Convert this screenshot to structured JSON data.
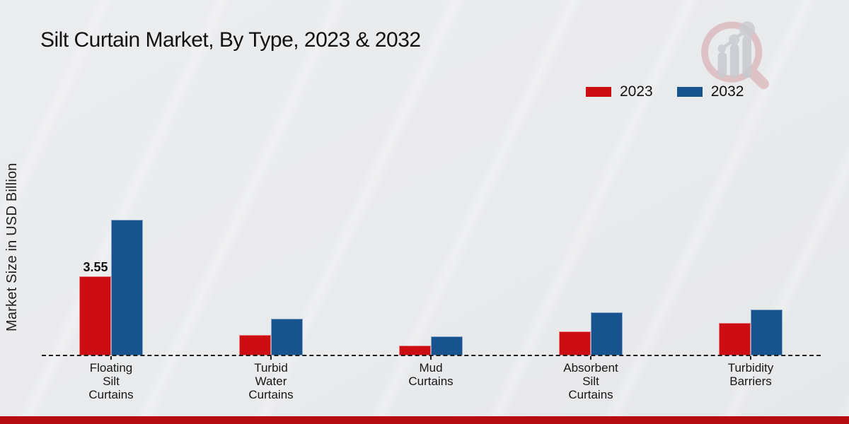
{
  "header": {
    "title": "Silt Curtain Market, By Type, 2023 & 2032"
  },
  "chart_data": {
    "type": "bar",
    "title": "Silt Curtain Market, By Type, 2023 & 2032",
    "categories": [
      "Floating Silt Curtains",
      "Turbid Water Curtains",
      "Mud Curtains",
      "Absorbent Silt Curtains",
      "Turbidity Barriers"
    ],
    "series": [
      {
        "name": "2023",
        "color": "#CC0D12",
        "values": [
          3.55,
          0.93,
          0.45,
          1.09,
          1.47
        ]
      },
      {
        "name": "2032",
        "color": "#17538F",
        "values": [
          6.08,
          1.66,
          0.84,
          1.92,
          2.05
        ]
      }
    ],
    "bar_labels": [
      {
        "series": "2023",
        "category": "Floating Silt Curtains",
        "text": "3.55"
      }
    ],
    "xlabel": "",
    "ylabel": "Market Size in USD Billion",
    "ylim": [
      0,
      7
    ],
    "grid": false,
    "baseline_style": "dashed",
    "legend_position": "top-right"
  },
  "footer": {
    "bar_color": "#B50D11"
  },
  "logo": {
    "name": "market-research-future-watermark"
  }
}
